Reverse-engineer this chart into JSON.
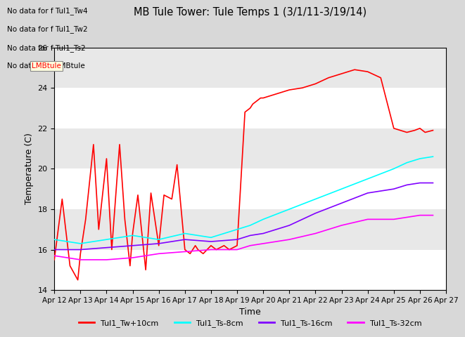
{
  "title": "MB Tule Tower: Tule Temps 1 (3/1/11-3/19/14)",
  "xlabel": "Time",
  "ylabel": "Temperature (C)",
  "ylim": [
    14,
    26
  ],
  "yticks": [
    14,
    16,
    18,
    20,
    22,
    24,
    26
  ],
  "xlim": [
    0,
    15
  ],
  "xtick_labels": [
    "Apr 12",
    "Apr 13",
    "Apr 14",
    "Apr 15",
    "Apr 16",
    "Apr 17",
    "Apr 18",
    "Apr 19",
    "Apr 20",
    "Apr 21",
    "Apr 22",
    "Apr 23",
    "Apr 24",
    "Apr 25",
    "Apr 26",
    "Apr 27"
  ],
  "no_data_messages": [
    "No data for f Tul1_Tw4",
    "No data for f Tul1_Tw2",
    "No data for f Tul1_Ts2",
    "No data for f LMBtule"
  ],
  "legend_entries": [
    "Tul1_Tw+10cm",
    "Tul1_Ts-8cm",
    "Tul1_Ts-16cm",
    "Tul1_Ts-32cm"
  ],
  "line_colors": [
    "#ff0000",
    "#00ffff",
    "#8000ff",
    "#ff00ff"
  ],
  "background_color": "#d8d8d8",
  "plot_bg_light": "#e8e8e8",
  "plot_bg_dark": "#d0d0d0",
  "grid_color": "#ffffff",
  "tw_x": [
    0,
    0.3,
    0.6,
    0.9,
    1.0,
    1.2,
    1.5,
    1.7,
    2.0,
    2.2,
    2.4,
    2.5,
    2.7,
    2.9,
    3.0,
    3.2,
    3.5,
    3.7,
    4.0,
    4.2,
    4.5,
    4.7,
    5.0,
    5.2,
    5.4,
    5.5,
    5.7,
    6.0,
    6.2,
    6.5,
    6.7,
    7.0,
    7.3,
    7.5,
    7.6,
    7.7,
    7.9,
    8.0,
    8.5,
    9.0,
    9.5,
    10.0,
    10.5,
    11.0,
    11.5,
    12.0,
    12.5,
    13.0,
    13.5,
    13.8,
    14.0,
    14.2,
    14.5
  ],
  "tw_y": [
    15.5,
    18.5,
    15.2,
    14.5,
    15.8,
    17.5,
    21.2,
    17.0,
    20.5,
    16.0,
    19.5,
    21.2,
    17.5,
    15.2,
    16.8,
    18.7,
    15.0,
    18.8,
    16.2,
    18.7,
    18.5,
    20.2,
    16.0,
    15.8,
    16.2,
    16.0,
    15.8,
    16.2,
    16.0,
    16.2,
    16.0,
    16.2,
    22.8,
    23.0,
    23.2,
    23.3,
    23.5,
    23.5,
    23.7,
    23.9,
    24.0,
    24.2,
    24.5,
    24.7,
    24.9,
    24.8,
    24.5,
    22.0,
    21.8,
    21.9,
    22.0,
    21.8,
    21.9
  ],
  "ts8_x": [
    0,
    1.0,
    2.0,
    3.0,
    4.0,
    5.0,
    6.0,
    7.0,
    7.5,
    8.0,
    9.0,
    10.0,
    11.0,
    12.0,
    13.0,
    13.5,
    14.0,
    14.5
  ],
  "ts8_y": [
    16.5,
    16.3,
    16.5,
    16.7,
    16.5,
    16.8,
    16.6,
    17.0,
    17.2,
    17.5,
    18.0,
    18.5,
    19.0,
    19.5,
    20.0,
    20.3,
    20.5,
    20.6
  ],
  "ts16_x": [
    0,
    1.0,
    2.0,
    3.0,
    4.0,
    5.0,
    6.0,
    7.0,
    7.5,
    8.0,
    9.0,
    10.0,
    11.0,
    12.0,
    13.0,
    13.5,
    14.0,
    14.5
  ],
  "ts16_y": [
    16.0,
    16.0,
    16.1,
    16.2,
    16.3,
    16.5,
    16.4,
    16.5,
    16.7,
    16.8,
    17.2,
    17.8,
    18.3,
    18.8,
    19.0,
    19.2,
    19.3,
    19.3
  ],
  "ts32_x": [
    0,
    1.0,
    2.0,
    3.0,
    4.0,
    5.0,
    6.0,
    7.0,
    7.5,
    8.0,
    9.0,
    10.0,
    11.0,
    12.0,
    13.0,
    13.5,
    14.0,
    14.5
  ],
  "ts32_y": [
    15.7,
    15.5,
    15.5,
    15.6,
    15.8,
    15.9,
    16.0,
    16.0,
    16.2,
    16.3,
    16.5,
    16.8,
    17.2,
    17.5,
    17.5,
    17.6,
    17.7,
    17.7
  ]
}
